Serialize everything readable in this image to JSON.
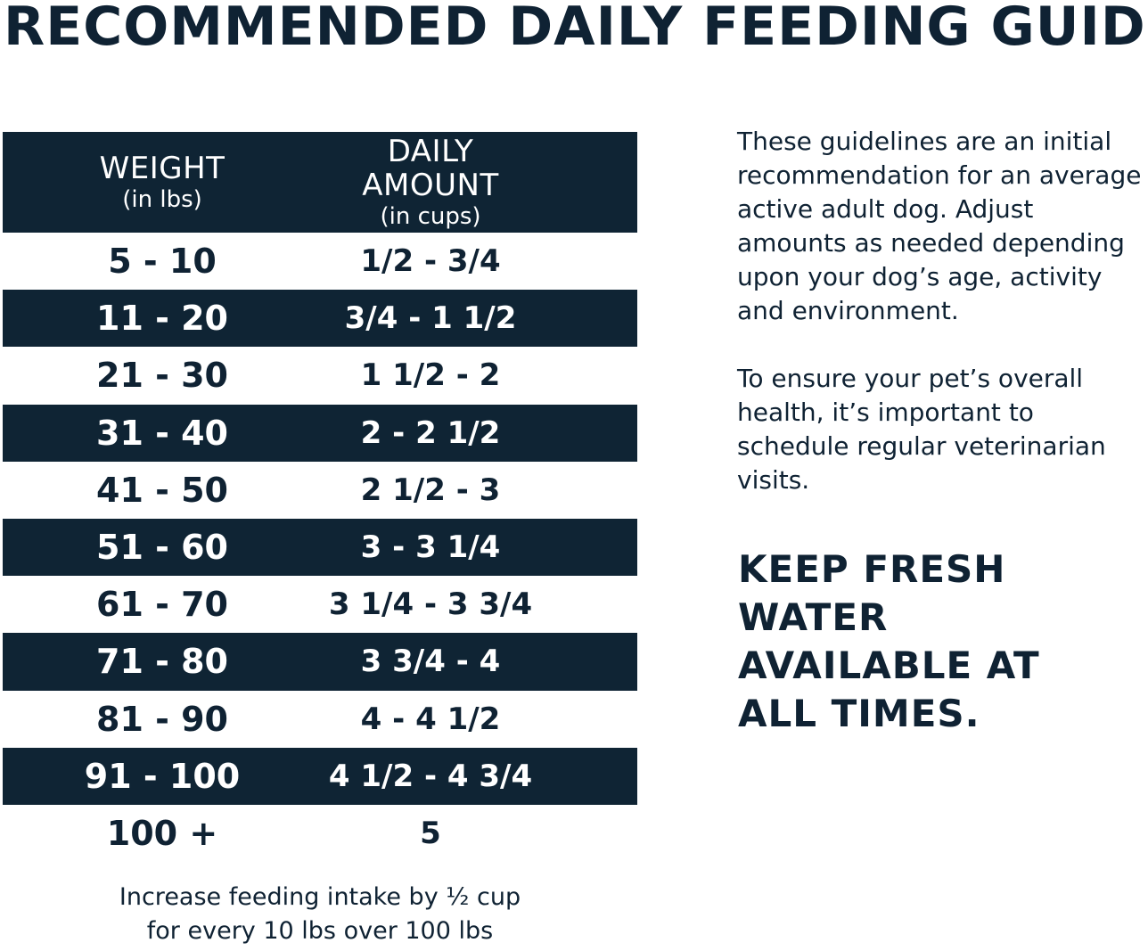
{
  "title": "RECOMMENDED DAILY FEEDING GUIDE",
  "table": {
    "header": {
      "weight_label": "WEIGHT",
      "weight_unit": "(in lbs)",
      "amount_label": "DAILY AMOUNT",
      "amount_unit": "(in cups)"
    },
    "rows": [
      {
        "weight": "5 - 10",
        "amount": "1/2 - 3/4"
      },
      {
        "weight": "11 - 20",
        "amount": "3/4 - 1 1/2"
      },
      {
        "weight": "21 - 30",
        "amount": "1 1/2 - 2"
      },
      {
        "weight": "31 - 40",
        "amount": "2 - 2 1/2"
      },
      {
        "weight": "41 - 50",
        "amount": "2 1/2 - 3"
      },
      {
        "weight": "51 - 60",
        "amount": "3 - 3 1/4"
      },
      {
        "weight": "61 - 70",
        "amount": "3 1/4 - 3 3/4"
      },
      {
        "weight": "71 - 80",
        "amount": "3 3/4 - 4"
      },
      {
        "weight": "81 - 90",
        "amount": "4 - 4 1/2"
      },
      {
        "weight": "91 - 100",
        "amount": "4 1/2 - 4 3/4"
      },
      {
        "weight": "100 +",
        "amount": "5"
      }
    ]
  },
  "footnote": {
    "line1": "Increase feeding intake by ½ cup",
    "line2": "for every 10 lbs over 100 lbs"
  },
  "side": {
    "paragraph1": "These guidelines are an initial recommendation for an average active adult dog. Adjust amounts as needed depending upon your dog’s age, activity and environment.",
    "paragraph2": "To ensure your pet’s overall health, it’s important to schedule regular veterinarian visits.",
    "callout": "KEEP FRESH WATER AVAILABLE AT ALL TIMES."
  },
  "colors": {
    "navy": "#0f2434",
    "text": "#0f2233",
    "background": "#ffffff"
  }
}
